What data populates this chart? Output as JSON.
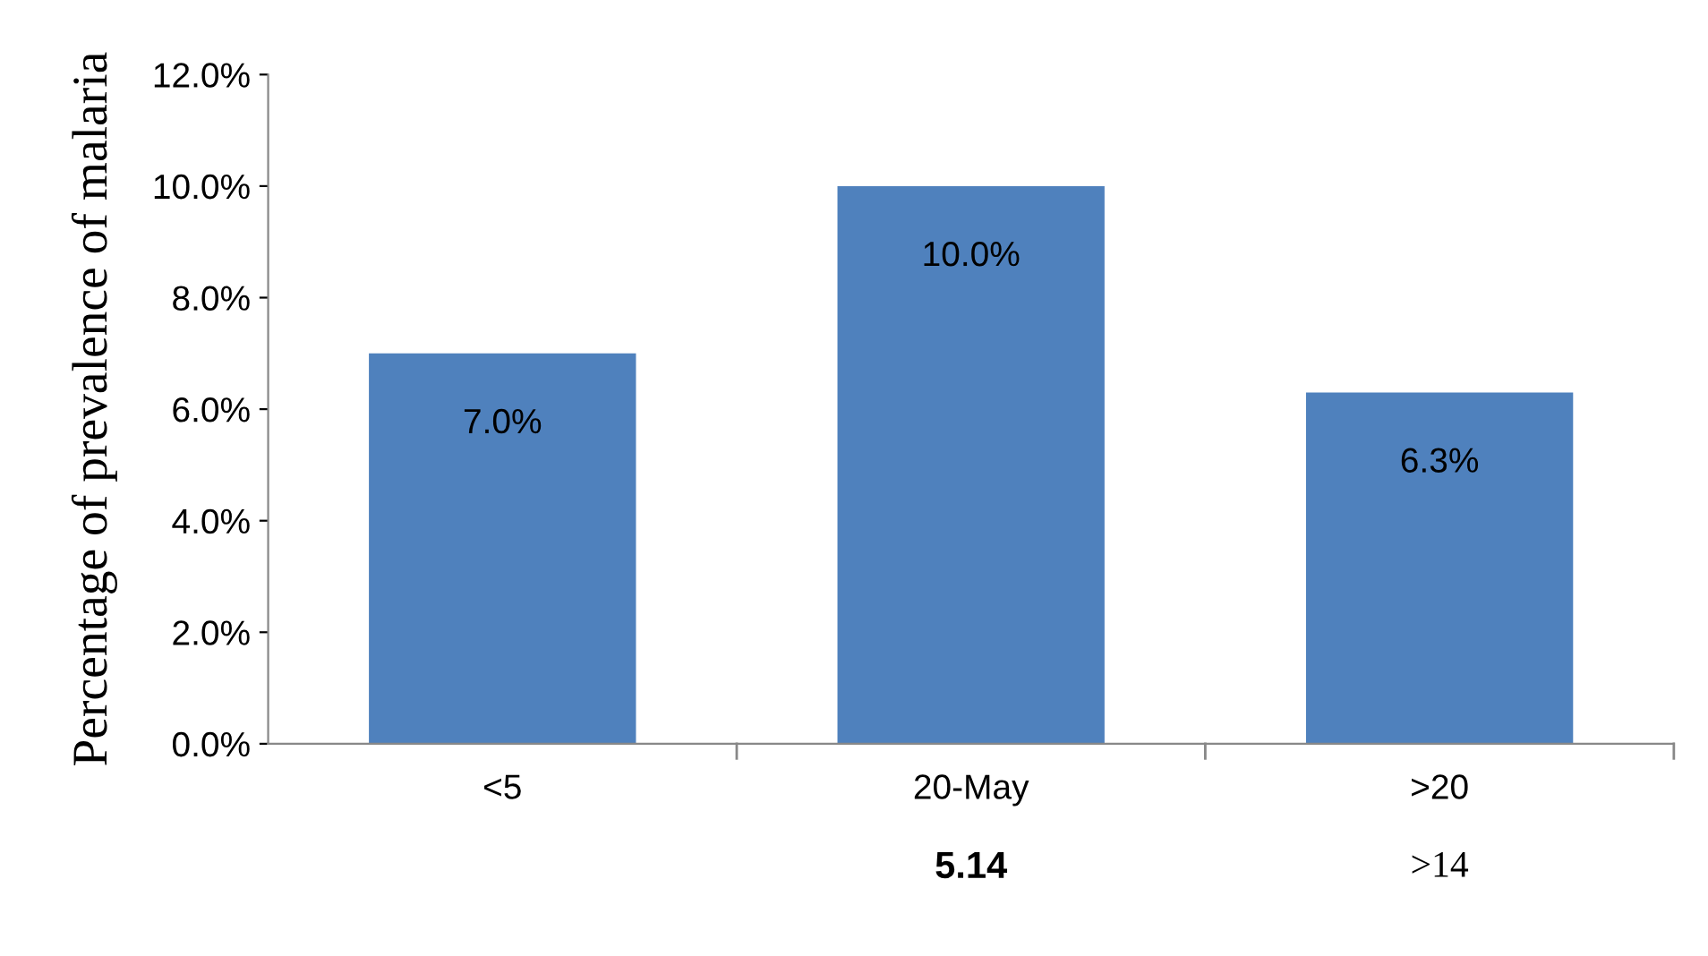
{
  "chart_data": {
    "type": "bar",
    "ylabel": "Percentage of prevalence of malaria",
    "categories": [
      "<5",
      "20-May",
      ">20"
    ],
    "values": [
      7.0,
      10.0,
      6.3
    ],
    "value_labels": [
      "7.0%",
      "10.0%",
      "6.3%"
    ],
    "color": "#4f81bd",
    "ylim": [
      0,
      12
    ],
    "yticks": [
      {
        "value": 0,
        "label": "0.0%"
      },
      {
        "value": 2,
        "label": "2.0%"
      },
      {
        "value": 4,
        "label": "4.0%"
      },
      {
        "value": 6,
        "label": "6.0%"
      },
      {
        "value": 8,
        "label": "8.0%"
      },
      {
        "value": 10,
        "label": "10.0%"
      },
      {
        "value": 12,
        "label": "12.0%"
      }
    ],
    "grid": false,
    "legend": false,
    "annotations": [
      "5.14",
      ">14"
    ]
  }
}
